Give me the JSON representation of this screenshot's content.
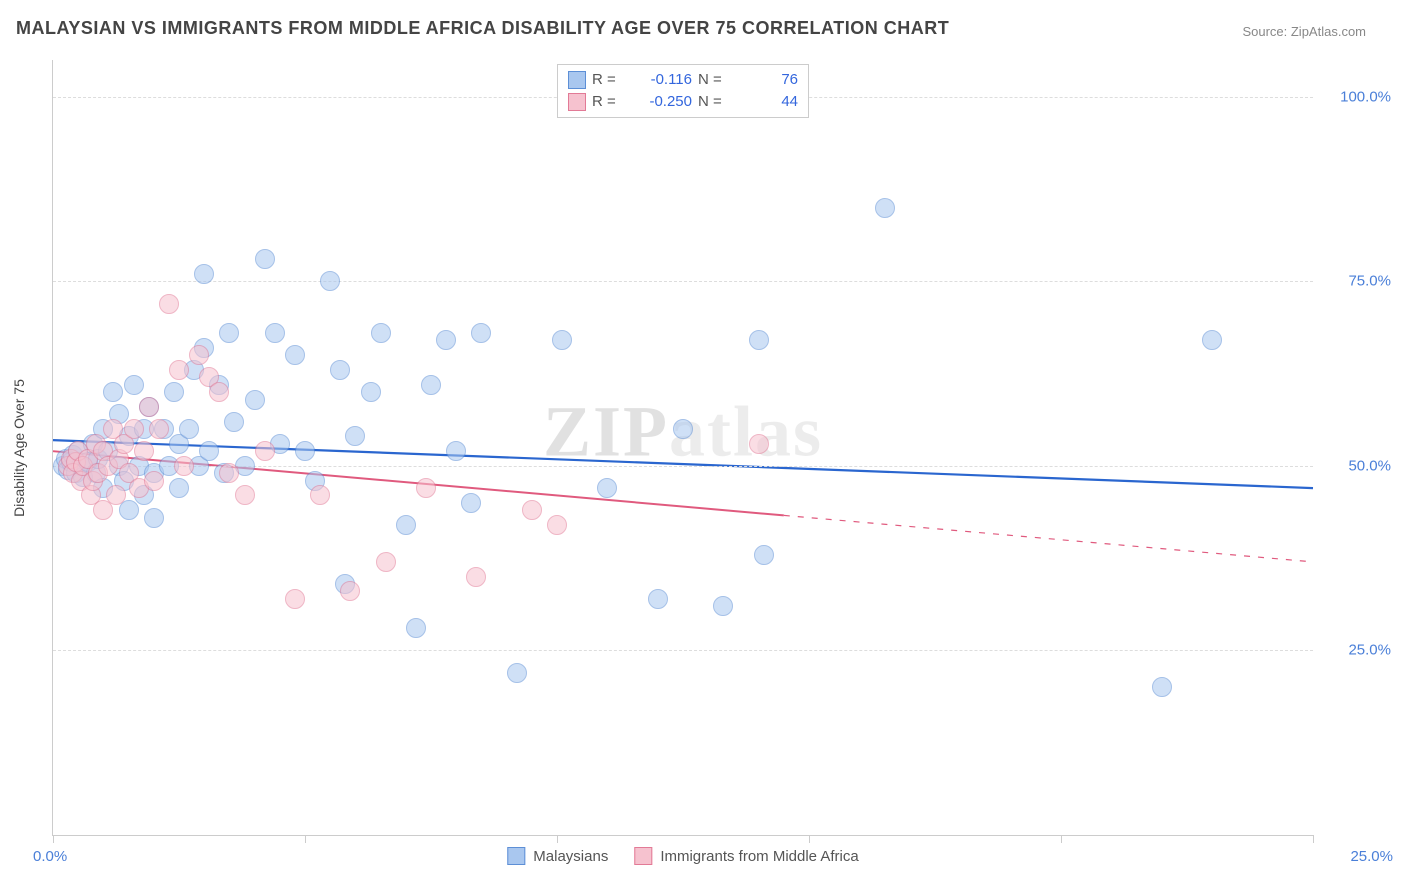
{
  "title": "MALAYSIAN VS IMMIGRANTS FROM MIDDLE AFRICA DISABILITY AGE OVER 75 CORRELATION CHART",
  "source": "Source: ZipAtlas.com",
  "y_axis_title": "Disability Age Over 75",
  "watermark": {
    "prefix": "ZIP",
    "suffix": "atlas"
  },
  "chart": {
    "type": "scatter",
    "background_color": "#ffffff",
    "grid_color": "#dddddd",
    "axis_color": "#cccccc",
    "xlim": [
      0,
      25
    ],
    "ylim": [
      0,
      105
    ],
    "x_ticks": [
      0,
      5,
      10,
      15,
      20,
      25
    ],
    "y_ticks": [
      25,
      50,
      75,
      100
    ],
    "y_tick_labels": [
      "25.0%",
      "50.0%",
      "75.0%",
      "100.0%"
    ],
    "x_start_label": "0.0%",
    "x_end_label": "25.0%",
    "tick_label_color": "#4a7fd8",
    "tick_label_fontsize": 15,
    "point_radius": 10,
    "point_opacity": 0.55,
    "point_stroke_width": 1.4
  },
  "series": [
    {
      "key": "malaysians",
      "label": "Malaysians",
      "fill": "#a9c7ef",
      "stroke": "#5d8fd6",
      "R": "-0.116",
      "N": "76",
      "trend": {
        "x1": 0,
        "y1": 53.5,
        "x2": 25,
        "y2": 47.0,
        "solid_until_x": 25,
        "stroke": "#2a66cf",
        "width": 2.2
      },
      "points": [
        [
          0.2,
          50
        ],
        [
          0.25,
          51
        ],
        [
          0.3,
          49.5
        ],
        [
          0.35,
          50.5
        ],
        [
          0.4,
          51.5
        ],
        [
          0.45,
          49
        ],
        [
          0.5,
          52
        ],
        [
          0.55,
          50
        ],
        [
          0.6,
          48.5
        ],
        [
          0.7,
          50.5
        ],
        [
          0.8,
          53
        ],
        [
          0.85,
          49
        ],
        [
          0.9,
          51
        ],
        [
          1.0,
          55
        ],
        [
          1.0,
          47
        ],
        [
          1.1,
          52
        ],
        [
          1.2,
          60
        ],
        [
          1.3,
          50
        ],
        [
          1.3,
          57
        ],
        [
          1.4,
          48
        ],
        [
          1.5,
          54
        ],
        [
          1.5,
          44
        ],
        [
          1.6,
          61
        ],
        [
          1.7,
          50
        ],
        [
          1.8,
          55
        ],
        [
          1.8,
          46
        ],
        [
          1.9,
          58
        ],
        [
          2.0,
          49
        ],
        [
          2.0,
          43
        ],
        [
          2.2,
          55
        ],
        [
          2.3,
          50
        ],
        [
          2.4,
          60
        ],
        [
          2.5,
          47
        ],
        [
          2.5,
          53
        ],
        [
          2.7,
          55
        ],
        [
          2.8,
          63
        ],
        [
          2.9,
          50
        ],
        [
          3.0,
          76
        ],
        [
          3.0,
          66
        ],
        [
          3.1,
          52
        ],
        [
          3.3,
          61
        ],
        [
          3.4,
          49
        ],
        [
          3.5,
          68
        ],
        [
          3.6,
          56
        ],
        [
          3.8,
          50
        ],
        [
          4.0,
          59
        ],
        [
          4.2,
          78
        ],
        [
          4.4,
          68
        ],
        [
          4.5,
          53
        ],
        [
          4.8,
          65
        ],
        [
          5.0,
          52
        ],
        [
          5.2,
          48
        ],
        [
          5.5,
          75
        ],
        [
          5.7,
          63
        ],
        [
          5.8,
          34
        ],
        [
          6.0,
          54
        ],
        [
          6.3,
          60
        ],
        [
          6.5,
          68
        ],
        [
          7.0,
          42
        ],
        [
          7.2,
          28
        ],
        [
          7.5,
          61
        ],
        [
          7.8,
          67
        ],
        [
          8.0,
          52
        ],
        [
          8.3,
          45
        ],
        [
          8.5,
          68
        ],
        [
          9.2,
          22
        ],
        [
          10.1,
          67
        ],
        [
          11.0,
          47
        ],
        [
          12.0,
          32
        ],
        [
          12.5,
          55
        ],
        [
          13.3,
          31
        ],
        [
          14.0,
          67
        ],
        [
          14.1,
          38
        ],
        [
          16.5,
          85
        ],
        [
          22.0,
          20
        ],
        [
          23.0,
          67
        ]
      ]
    },
    {
      "key": "middle_africa",
      "label": "Immigrants from Middle Africa",
      "fill": "#f6c2cf",
      "stroke": "#e27a96",
      "R": "-0.250",
      "N": "44",
      "trend": {
        "x1": 0,
        "y1": 52.0,
        "x2": 25,
        "y2": 37.0,
        "solid_until_x": 14.5,
        "stroke": "#e05a7e",
        "width": 2.0
      },
      "points": [
        [
          0.3,
          50
        ],
        [
          0.35,
          51
        ],
        [
          0.4,
          49
        ],
        [
          0.45,
          50.5
        ],
        [
          0.5,
          52
        ],
        [
          0.55,
          48
        ],
        [
          0.6,
          50
        ],
        [
          0.7,
          51
        ],
        [
          0.75,
          46
        ],
        [
          0.8,
          48
        ],
        [
          0.85,
          53
        ],
        [
          0.9,
          49
        ],
        [
          1.0,
          44
        ],
        [
          1.0,
          52
        ],
        [
          1.1,
          50
        ],
        [
          1.2,
          55
        ],
        [
          1.25,
          46
        ],
        [
          1.3,
          51
        ],
        [
          1.4,
          53
        ],
        [
          1.5,
          49
        ],
        [
          1.6,
          55
        ],
        [
          1.7,
          47
        ],
        [
          1.8,
          52
        ],
        [
          1.9,
          58
        ],
        [
          2.0,
          48
        ],
        [
          2.1,
          55
        ],
        [
          2.3,
          72
        ],
        [
          2.5,
          63
        ],
        [
          2.6,
          50
        ],
        [
          2.9,
          65
        ],
        [
          3.1,
          62
        ],
        [
          3.3,
          60
        ],
        [
          3.5,
          49
        ],
        [
          3.8,
          46
        ],
        [
          4.2,
          52
        ],
        [
          4.8,
          32
        ],
        [
          5.3,
          46
        ],
        [
          5.9,
          33
        ],
        [
          6.6,
          37
        ],
        [
          7.4,
          47
        ],
        [
          8.4,
          35
        ],
        [
          9.5,
          44
        ],
        [
          10.0,
          42
        ],
        [
          14.0,
          53
        ]
      ]
    }
  ],
  "legend_top": [
    {
      "swatch_fill": "#a9c7ef",
      "swatch_stroke": "#5d8fd6",
      "RLabel": "R =",
      "R": "-0.116",
      "NLabel": "N =",
      "N": "76"
    },
    {
      "swatch_fill": "#f6c2cf",
      "swatch_stroke": "#e27a96",
      "RLabel": "R =",
      "R": "-0.250",
      "NLabel": "N =",
      "N": "44"
    }
  ],
  "legend_bottom": [
    {
      "swatch_fill": "#a9c7ef",
      "swatch_stroke": "#5d8fd6",
      "label": "Malaysians"
    },
    {
      "swatch_fill": "#f6c2cf",
      "swatch_stroke": "#e27a96",
      "label": "Immigrants from Middle Africa"
    }
  ]
}
